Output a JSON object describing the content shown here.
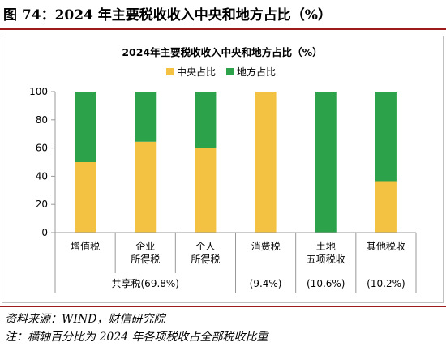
{
  "figure": {
    "label": "图 74：2024 年主要税收收入中央和地方占比（%）",
    "source": "资料来源：WIND，财信研究院",
    "note": "注：横轴百分比为 2024 年各项税收占全部税收比重"
  },
  "colors": {
    "central": "#f4c242",
    "local": "#2ca24a",
    "axis": "#999999",
    "text": "#000000"
  },
  "chart_data": {
    "type": "bar",
    "stacked": true,
    "title": "2024年主要税收收入中央和地方占比（%）",
    "legend_position": "top-center",
    "ylim": [
      0,
      100
    ],
    "yticks": [
      "0",
      "20",
      "40",
      "60",
      "80",
      "100"
    ],
    "categories": [
      [
        "增值税"
      ],
      [
        "企业",
        "所得税"
      ],
      [
        "个人",
        "所得税"
      ],
      [
        "消费税"
      ],
      [
        "土地",
        "五项税收"
      ],
      [
        "其他税收"
      ]
    ],
    "series": [
      {
        "name": "中央占比",
        "values": [
          50,
          64.5,
          60,
          100,
          0,
          36.5
        ]
      },
      {
        "name": "地方占比",
        "values": [
          50,
          35.5,
          40,
          0,
          100,
          63.5
        ]
      }
    ],
    "groups": [
      {
        "label": "共享税(69.8%)",
        "span": [
          0,
          2
        ]
      },
      {
        "label": "(9.4%)",
        "span": [
          3,
          3
        ]
      },
      {
        "label": "(10.6%)",
        "span": [
          4,
          4
        ]
      },
      {
        "label": "(10.2%)",
        "span": [
          5,
          5
        ]
      }
    ]
  }
}
